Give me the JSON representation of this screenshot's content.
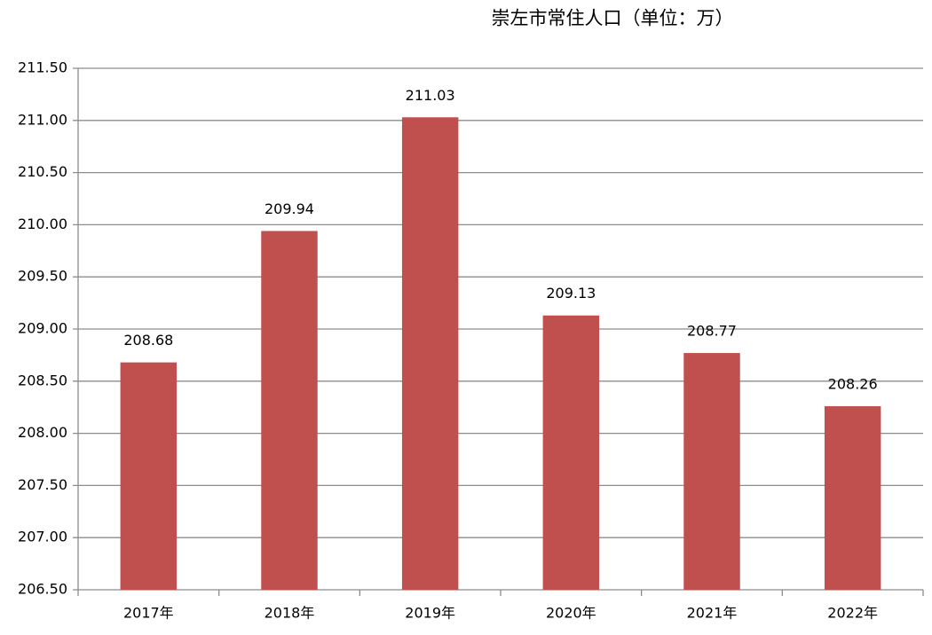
{
  "chart_data": {
    "type": "bar",
    "title": "崇左市常住人口（单位：万）",
    "categories": [
      "2017年",
      "2018年",
      "2019年",
      "2020年",
      "2021年",
      "2022年"
    ],
    "values": [
      208.68,
      209.94,
      211.03,
      209.13,
      208.77,
      208.26
    ],
    "color": "#c0504d",
    "ylim": [
      206.5,
      211.5
    ],
    "yticks": [
      {
        "value": 206.5,
        "label": "206.50"
      },
      {
        "value": 207,
        "label": "207.00"
      },
      {
        "value": 207.5,
        "label": "207.50"
      },
      {
        "value": 208,
        "label": "208.00"
      },
      {
        "value": 208.5,
        "label": "208.50"
      },
      {
        "value": 209,
        "label": "209.00"
      },
      {
        "value": 209.5,
        "label": "209.50"
      },
      {
        "value": 210,
        "label": "210.00"
      },
      {
        "value": 210.5,
        "label": "210.50"
      },
      {
        "value": 211,
        "label": "211.00"
      },
      {
        "value": 211.5,
        "label": "211.50"
      }
    ],
    "grid": true
  }
}
